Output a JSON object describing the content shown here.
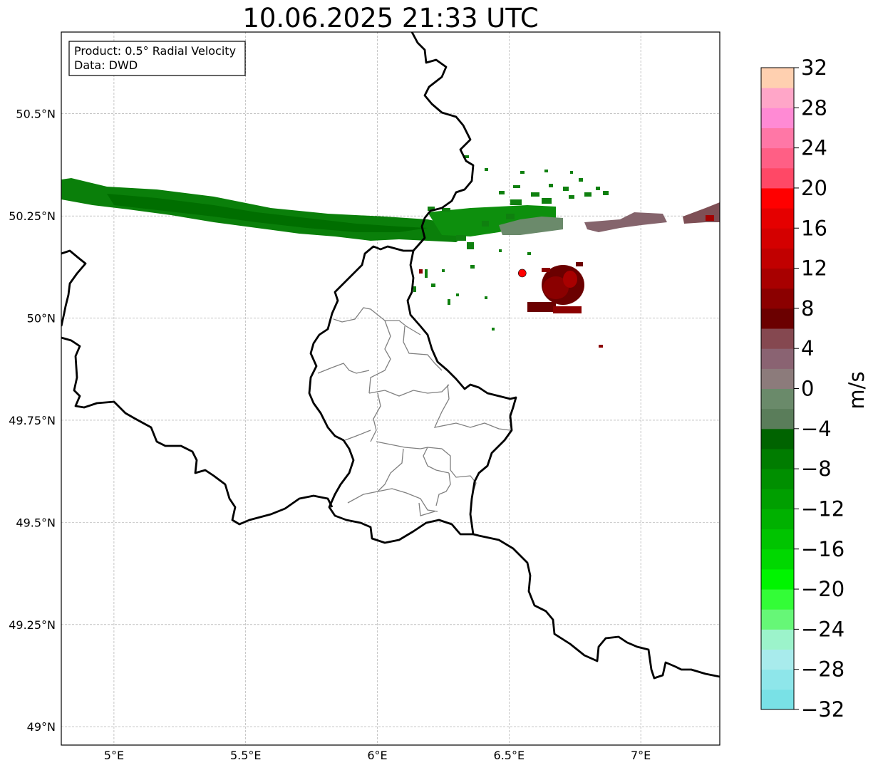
{
  "title": "10.06.2025 21:33 UTC",
  "info_box": {
    "line1": "Product: 0.5° Radial Velocity",
    "line2": "Data: DWD"
  },
  "map": {
    "lon_ticks": [
      {
        "lon": 5.0,
        "label": "5°E"
      },
      {
        "lon": 5.5,
        "label": "5.5°E"
      },
      {
        "lon": 6.0,
        "label": "6°E"
      },
      {
        "lon": 6.5,
        "label": "6.5°E"
      },
      {
        "lon": 7.0,
        "label": "7°E"
      }
    ],
    "lat_ticks": [
      {
        "lat": 50.5,
        "label": "50.5°N"
      },
      {
        "lat": 50.25,
        "label": "50.25°N"
      },
      {
        "lat": 50.0,
        "label": "50°N"
      },
      {
        "lat": 49.75,
        "label": "49.75°N"
      },
      {
        "lat": 49.5,
        "label": "49.5°N"
      },
      {
        "lat": 49.25,
        "label": "49.25°N"
      },
      {
        "lat": 49.0,
        "label": "49°N"
      }
    ],
    "radar_site": {
      "lon": 6.55,
      "lat": 50.11,
      "color": "#ff0000"
    }
  },
  "colorbar": {
    "unit": "m/s",
    "min": -32,
    "max": 32,
    "colors": [
      "#79e1e6",
      "#8ee6ea",
      "#a8ebec",
      "#9cf3cb",
      "#66f777",
      "#33fd37",
      "#00f500",
      "#00d800",
      "#00c400",
      "#00b100",
      "#009f00",
      "#008f00",
      "#007c00",
      "#006300",
      "#5a7d5a",
      "#6a8a6a",
      "#8c7b7b",
      "#8a6372",
      "#854850",
      "#6b0000",
      "#8b0000",
      "#a80000",
      "#c10000",
      "#d40000",
      "#e50000",
      "#ff0000",
      "#ff4866",
      "#ff5f85",
      "#ff77a6",
      "#ff8ad4",
      "#ffa6c8",
      "#ffd0b0"
    ],
    "tick_labels": [
      "32",
      "28",
      "24",
      "20",
      "16",
      "12",
      "8",
      "4",
      "0",
      "−4",
      "−8",
      "−12",
      "−16",
      "−20",
      "−24",
      "−28",
      "−32"
    ]
  }
}
